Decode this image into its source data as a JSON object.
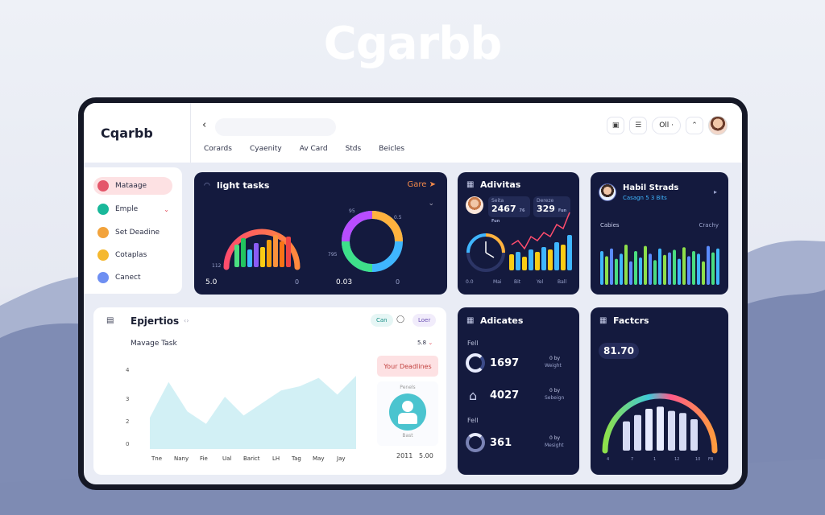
{
  "hero_title": "Cgarbb",
  "brand": "Cqarbb",
  "nav_tabs": [
    "Corards",
    "Cyaenity",
    "Av Card",
    "Stds",
    "Beicles"
  ],
  "topbar": {
    "pill": "Oll ·",
    "icons": [
      "calendar-icon",
      "list-icon",
      "chevron-icon"
    ]
  },
  "sidebar": [
    {
      "label": "Mataage",
      "color": "#e4566a",
      "active": true
    },
    {
      "label": "Emple",
      "color": "#19b89a",
      "active": false
    },
    {
      "label": "Set Deadine",
      "color": "#f2a33c",
      "active": false
    },
    {
      "label": "Cotaplas",
      "color": "#f5b82e",
      "active": false
    },
    {
      "label": "Canect",
      "color": "#6e8ff2",
      "active": false
    }
  ],
  "tasks": {
    "title": "light tasks",
    "action": "Gare",
    "a_label": "5.0",
    "a_sub": "0.00",
    "a_side": "112",
    "b_top": "95",
    "b_tr": "0.5",
    "b_side": "795",
    "b_label": "0.03",
    "zero": "0"
  },
  "activites": {
    "title": "Adivitas",
    "s1_label": "Seita",
    "s1_value": "2467",
    "s1_unit": "76 Fun",
    "s2_label": "Dereze",
    "s2_value": "329",
    "s2_unit": "Fun",
    "x_labels": [
      "0.0",
      "Mai",
      "Bit",
      "Yel",
      "Ball"
    ]
  },
  "habit": {
    "title": "Habil Strads",
    "sub": "Casagn 5 3 Bits",
    "left_label": "Cabies",
    "right_label": "Crachy"
  },
  "expert": {
    "title": "Epjertios",
    "sub": "Mavage Task",
    "chip1": "Can",
    "chip2": "Loer",
    "select": "5.8",
    "y_labels": [
      "4",
      "3",
      "2",
      "0"
    ],
    "x_labels": [
      "Tne",
      "Nany",
      "Fie",
      "Ual",
      "Barict",
      "LH",
      "Tag",
      "May",
      "Jay"
    ],
    "deadline_btn": "Your Deadlines",
    "profile_top": "Penels",
    "profile_bot": "Bast",
    "n1": "2011",
    "n2": "5.00"
  },
  "adicates": {
    "title": "Adicates",
    "rows": [
      {
        "group": "Fell",
        "value": "1697",
        "tag": "0 by",
        "tag2": "Weight"
      },
      {
        "group": "",
        "value": "4027",
        "tag": "0 by",
        "tag2": "Sebeign"
      },
      {
        "group": "Fell",
        "value": "361",
        "tag": "0 by",
        "tag2": "Mesight"
      }
    ]
  },
  "factors": {
    "title": "Factcrs",
    "value": "81.70",
    "x_labels": [
      "4",
      "7",
      "1",
      "12",
      "10",
      "FB"
    ]
  },
  "colors": {
    "navy": "#141a3e",
    "accent": "#e24a5a"
  },
  "chart_data": [
    {
      "type": "bar",
      "title": "light tasks",
      "values": [
        28,
        36,
        22,
        30,
        25,
        34,
        40,
        32,
        38
      ],
      "note": "gauge with bars"
    },
    {
      "type": "line",
      "title": "Adivitas",
      "values": [
        4,
        5,
        3,
        6,
        5,
        7,
        6,
        9,
        8,
        12
      ]
    },
    {
      "type": "bar",
      "title": "Habil Strads",
      "values": [
        20,
        16,
        22,
        14,
        18,
        25,
        12,
        20,
        15,
        24,
        18,
        13,
        22,
        17,
        19,
        21,
        14,
        23,
        16,
        20,
        18,
        12,
        24,
        19,
        22
      ]
    },
    {
      "type": "area",
      "title": "Epjertios",
      "values": [
        1.5,
        3.2,
        1.8,
        1.2,
        2.5,
        1.6,
        2.2,
        2.8,
        3.0,
        3.4,
        2.6,
        3.5
      ]
    },
    {
      "type": "bar",
      "title": "Factcrs",
      "values": [
        28,
        34,
        40,
        42,
        38,
        36,
        30
      ]
    }
  ]
}
